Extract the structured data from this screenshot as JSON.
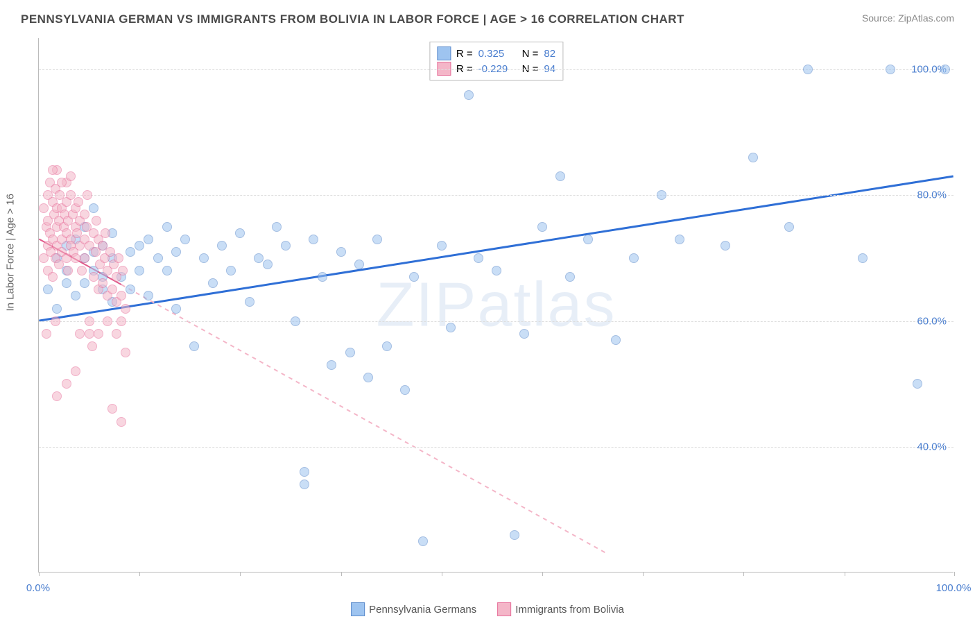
{
  "title": "PENNSYLVANIA GERMAN VS IMMIGRANTS FROM BOLIVIA IN LABOR FORCE | AGE > 16 CORRELATION CHART",
  "source": "Source: ZipAtlas.com",
  "watermark": "ZIPatlas",
  "yaxis_title": "In Labor Force | Age > 16",
  "chart": {
    "type": "scatter",
    "xlim": [
      0,
      100
    ],
    "ylim": [
      20,
      105
    ],
    "yticks": [
      40,
      60,
      80,
      100
    ],
    "ytick_labels": [
      "40.0%",
      "60.0%",
      "80.0%",
      "100.0%"
    ],
    "xtick_positions": [
      0,
      11,
      22,
      33,
      44,
      55,
      66,
      77,
      88,
      100
    ],
    "xend_labels": [
      "0.0%",
      "100.0%"
    ],
    "background_color": "#ffffff",
    "border_color": "#bbbbbb",
    "grid_color": "#dddddd",
    "ytick_label_color": "#4a7ecf",
    "point_radius": 7,
    "point_opacity": 0.55
  },
  "series": [
    {
      "id": "pa_german",
      "label": "Pennsylvania Germans",
      "color_fill": "#9ec4f0",
      "color_border": "#5a8acb",
      "R": "0.325",
      "N": "82",
      "trend": {
        "x1": 0,
        "y1": 60,
        "x2": 100,
        "y2": 83,
        "solid": true,
        "color": "#2f6fd6",
        "width": 3
      },
      "points": [
        [
          1,
          65
        ],
        [
          2,
          62
        ],
        [
          2,
          70
        ],
        [
          3,
          68
        ],
        [
          3,
          72
        ],
        [
          3,
          66
        ],
        [
          4,
          64
        ],
        [
          4,
          73
        ],
        [
          5,
          70
        ],
        [
          5,
          66
        ],
        [
          5,
          75
        ],
        [
          6,
          71
        ],
        [
          6,
          68
        ],
        [
          6,
          78
        ],
        [
          7,
          72
        ],
        [
          7,
          67
        ],
        [
          7,
          65
        ],
        [
          8,
          70
        ],
        [
          8,
          74
        ],
        [
          8,
          63
        ],
        [
          9,
          67
        ],
        [
          10,
          71
        ],
        [
          10,
          65
        ],
        [
          11,
          72
        ],
        [
          11,
          68
        ],
        [
          12,
          64
        ],
        [
          12,
          73
        ],
        [
          13,
          70
        ],
        [
          14,
          68
        ],
        [
          14,
          75
        ],
        [
          15,
          62
        ],
        [
          15,
          71
        ],
        [
          16,
          73
        ],
        [
          17,
          56
        ],
        [
          18,
          70
        ],
        [
          19,
          66
        ],
        [
          20,
          72
        ],
        [
          21,
          68
        ],
        [
          22,
          74
        ],
        [
          23,
          63
        ],
        [
          24,
          70
        ],
        [
          25,
          69
        ],
        [
          26,
          75
        ],
        [
          27,
          72
        ],
        [
          28,
          60
        ],
        [
          29,
          36
        ],
        [
          29,
          34
        ],
        [
          30,
          73
        ],
        [
          31,
          67
        ],
        [
          32,
          53
        ],
        [
          33,
          71
        ],
        [
          34,
          55
        ],
        [
          35,
          69
        ],
        [
          36,
          51
        ],
        [
          37,
          73
        ],
        [
          38,
          56
        ],
        [
          40,
          49
        ],
        [
          41,
          67
        ],
        [
          42,
          25
        ],
        [
          44,
          72
        ],
        [
          45,
          59
        ],
        [
          47,
          96
        ],
        [
          48,
          70
        ],
        [
          50,
          68
        ],
        [
          52,
          26
        ],
        [
          53,
          58
        ],
        [
          55,
          75
        ],
        [
          57,
          83
        ],
        [
          58,
          67
        ],
        [
          60,
          73
        ],
        [
          63,
          57
        ],
        [
          65,
          70
        ],
        [
          68,
          80
        ],
        [
          70,
          73
        ],
        [
          75,
          72
        ],
        [
          78,
          86
        ],
        [
          82,
          75
        ],
        [
          84,
          100
        ],
        [
          90,
          70
        ],
        [
          93,
          100
        ],
        [
          96,
          50
        ],
        [
          99,
          100
        ]
      ]
    },
    {
      "id": "bolivia",
      "label": "Immigrants from Bolivia",
      "color_fill": "#f4b6c8",
      "color_border": "#e76f9a",
      "R": "-0.229",
      "N": "94",
      "trend": {
        "x1": 0,
        "y1": 73,
        "x2": 62,
        "y2": 23,
        "solid_until_x": 9,
        "color_solid": "#e05a8a",
        "color_dash": "#f4b6c8",
        "width": 2
      },
      "points": [
        [
          0.5,
          70
        ],
        [
          0.5,
          78
        ],
        [
          0.8,
          75
        ],
        [
          1,
          80
        ],
        [
          1,
          72
        ],
        [
          1,
          68
        ],
        [
          1,
          76
        ],
        [
          1.2,
          82
        ],
        [
          1.2,
          74
        ],
        [
          1.3,
          71
        ],
        [
          1.5,
          79
        ],
        [
          1.5,
          73
        ],
        [
          1.5,
          67
        ],
        [
          1.7,
          77
        ],
        [
          1.8,
          81
        ],
        [
          1.8,
          70
        ],
        [
          2,
          75
        ],
        [
          2,
          78
        ],
        [
          2,
          72
        ],
        [
          2,
          84
        ],
        [
          2.2,
          69
        ],
        [
          2.2,
          76
        ],
        [
          2.3,
          80
        ],
        [
          2.5,
          73
        ],
        [
          2.5,
          78
        ],
        [
          2.5,
          71
        ],
        [
          2.7,
          75
        ],
        [
          2.8,
          77
        ],
        [
          3,
          82
        ],
        [
          3,
          70
        ],
        [
          3,
          74
        ],
        [
          3,
          79
        ],
        [
          3.2,
          68
        ],
        [
          3.2,
          76
        ],
        [
          3.5,
          73
        ],
        [
          3.5,
          80
        ],
        [
          3.5,
          72
        ],
        [
          3.7,
          77
        ],
        [
          3.8,
          71
        ],
        [
          4,
          75
        ],
        [
          4,
          78
        ],
        [
          4,
          70
        ],
        [
          4.2,
          74
        ],
        [
          4.3,
          79
        ],
        [
          4.5,
          72
        ],
        [
          4.5,
          76
        ],
        [
          4.7,
          68
        ],
        [
          5,
          73
        ],
        [
          5,
          77
        ],
        [
          5,
          70
        ],
        [
          5.2,
          75
        ],
        [
          5.3,
          80
        ],
        [
          5.5,
          58
        ],
        [
          5.5,
          72
        ],
        [
          5.8,
          56
        ],
        [
          6,
          74
        ],
        [
          6,
          67
        ],
        [
          6.2,
          71
        ],
        [
          6.3,
          76
        ],
        [
          6.5,
          65
        ],
        [
          6.5,
          73
        ],
        [
          6.7,
          69
        ],
        [
          7,
          72
        ],
        [
          7,
          66
        ],
        [
          7.2,
          70
        ],
        [
          7.3,
          74
        ],
        [
          7.5,
          64
        ],
        [
          7.5,
          68
        ],
        [
          7.8,
          71
        ],
        [
          8,
          65
        ],
        [
          8,
          46
        ],
        [
          8.2,
          69
        ],
        [
          8.5,
          63
        ],
        [
          8.5,
          67
        ],
        [
          8.7,
          70
        ],
        [
          9,
          64
        ],
        [
          9,
          44
        ],
        [
          9.2,
          68
        ],
        [
          9.5,
          62
        ],
        [
          2,
          48
        ],
        [
          3,
          50
        ],
        [
          4,
          52
        ],
        [
          1.5,
          84
        ],
        [
          2.5,
          82
        ],
        [
          3.5,
          83
        ],
        [
          0.8,
          58
        ],
        [
          1.8,
          60
        ],
        [
          4.5,
          58
        ],
        [
          5.5,
          60
        ],
        [
          6.5,
          58
        ],
        [
          7.5,
          60
        ],
        [
          8.5,
          58
        ],
        [
          9,
          60
        ],
        [
          9.5,
          55
        ]
      ]
    }
  ],
  "legend_top_prefix": "R =",
  "legend_top_n_prefix": "N =",
  "xstart_label": "0.0%",
  "xend_label": "100.0%"
}
